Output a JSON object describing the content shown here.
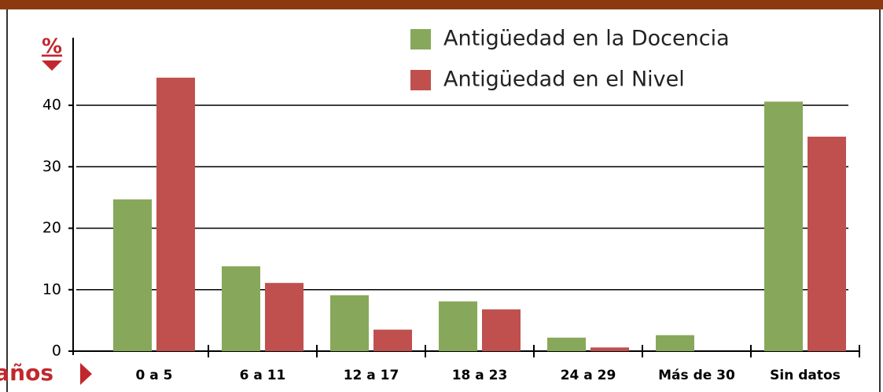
{
  "chart_data": {
    "type": "bar",
    "y_label": "%",
    "x_label": "años",
    "categories": [
      "0 a 5",
      "6 a 11",
      "12 a 17",
      "18 a 23",
      "24 a 29",
      "Más de 30",
      "Sin datos"
    ],
    "series": [
      {
        "name": "Antigüedad en la Docencia",
        "color": "#87a85a",
        "values": [
          24.7,
          13.8,
          9.1,
          8.1,
          2.2,
          2.6,
          40.6
        ]
      },
      {
        "name": "Antigüedad en el Nivel",
        "color": "#c0504d",
        "values": [
          44.5,
          11.1,
          3.5,
          6.8,
          0.6,
          0,
          34.9
        ]
      }
    ],
    "ylim": [
      0,
      51
    ],
    "yticks": [
      0,
      10,
      20,
      30,
      40
    ],
    "grid": true,
    "legend": "top-right"
  }
}
